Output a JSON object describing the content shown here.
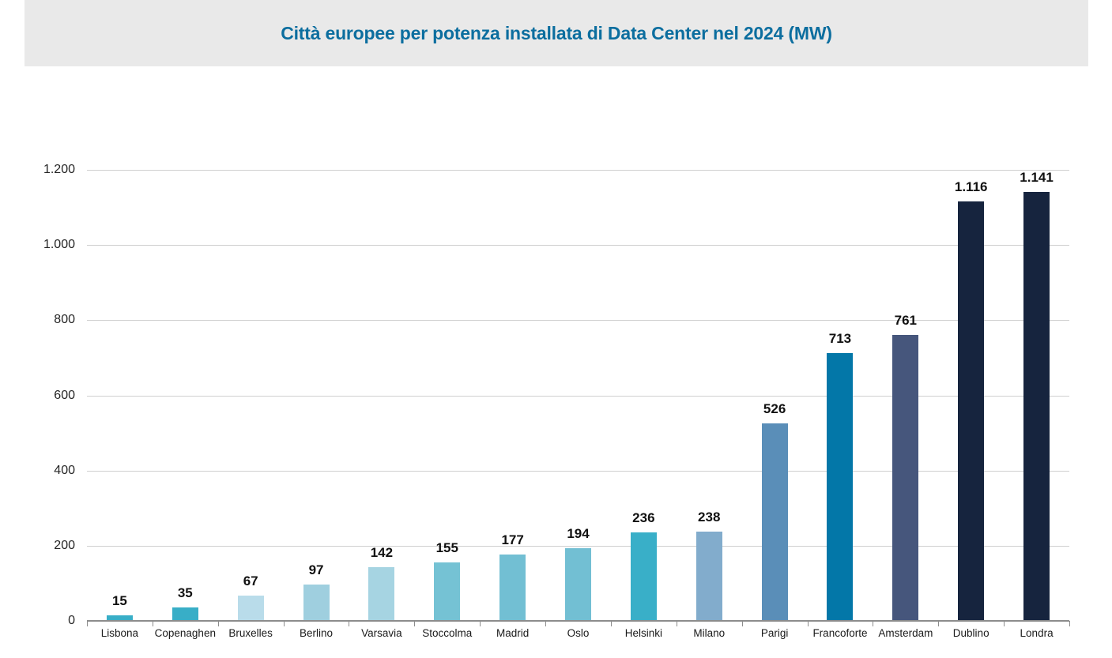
{
  "header": {
    "title": "Città europee per potenza installata di Data Center nel 2024 (MW)",
    "background": "#e9e9e9",
    "title_color": "#0c6e9f"
  },
  "chart_data": {
    "type": "bar",
    "title": "Città europee per potenza installata di Data Center nel 2024 (MW)",
    "categories": [
      "Lisbona",
      "Copenaghen",
      "Bruxelles",
      "Berlino",
      "Varsavia",
      "Stoccolma",
      "Madrid",
      "Oslo",
      "Helsinki",
      "Milano",
      "Parigi",
      "Francoforte",
      "Amsterdam",
      "Dublino",
      "Londra"
    ],
    "values": [
      15,
      35,
      67,
      97,
      142,
      155,
      177,
      194,
      236,
      238,
      526,
      713,
      761,
      1116,
      1141
    ],
    "value_labels": [
      "15",
      "35",
      "67",
      "97",
      "142",
      "155",
      "177",
      "194",
      "236",
      "238",
      "526",
      "713",
      "761",
      "1.116",
      "1.141"
    ],
    "bar_colors": [
      "#38aec7",
      "#38aec7",
      "#b9dcea",
      "#9fcfdf",
      "#a6d4e2",
      "#75c2d4",
      "#72bfd3",
      "#72bfd3",
      "#39afc8",
      "#82accc",
      "#5a8eb8",
      "#0377a8",
      "#46567c",
      "#16243e",
      "#16243e"
    ],
    "xlabel": "",
    "ylabel": "",
    "unit": "MW",
    "ylim": [
      0,
      1200
    ],
    "ytick_values": [
      0,
      200,
      400,
      600,
      800,
      1000,
      1200
    ],
    "ytick_labels": [
      "0",
      "200",
      "400",
      "600",
      "800",
      "1.000",
      "1.200"
    ],
    "grid": true,
    "legend": false,
    "gridline_color": "#cfcfcf",
    "axis_color": "#8c8c8c",
    "value_label_color": "#111111",
    "tick_label_color": "#1a1a1a"
  }
}
